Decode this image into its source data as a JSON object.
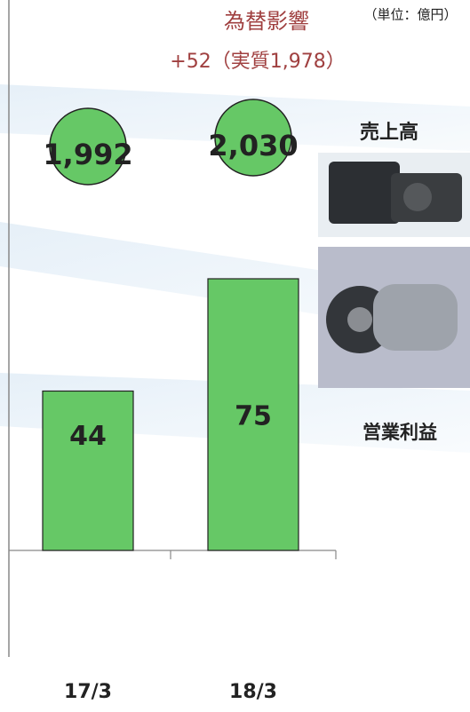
{
  "chart_data": {
    "type": "bar",
    "annotations": {
      "fx_effect": "為替影響",
      "fx_detail": "+52（実質1,978）",
      "unit": "（単位：億円）",
      "sales_label": "売上高",
      "profit_label": "営業利益"
    },
    "categories": [
      "17/3",
      "18/3"
    ],
    "series": [
      {
        "name": "売上高",
        "color": "#66c866",
        "values": [
          1992,
          2030
        ],
        "value_labels": [
          "1,992",
          "2,030"
        ]
      },
      {
        "name": "営業利益",
        "color": "#66c866",
        "values": [
          44,
          75
        ]
      }
    ]
  }
}
